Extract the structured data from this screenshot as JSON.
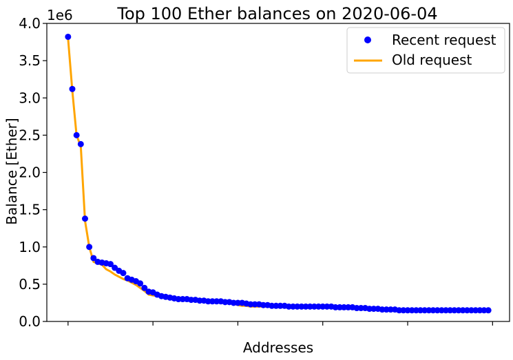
{
  "chart_data": {
    "type": "line",
    "title": "Top 100 Ether balances on 2020-06-04",
    "xlabel": "Addresses",
    "ylabel": "Balance [Ether]",
    "y_scale_label": "1e6",
    "ylim": [
      0,
      4.0
    ],
    "xlim": [
      -5,
      104
    ],
    "yticks": [
      0.0,
      0.5,
      1.0,
      1.5,
      2.0,
      2.5,
      3.0,
      3.5,
      4.0
    ],
    "ytick_labels": [
      "0.0",
      "0.5",
      "1.0",
      "1.5",
      "2.0",
      "2.5",
      "3.0",
      "3.5",
      "4.0"
    ],
    "xticks": [
      0,
      20,
      40,
      60,
      80,
      100
    ],
    "xtick_labels_shown": false,
    "grid": false,
    "legend_position": "top-right",
    "series": [
      {
        "name": "Recent request",
        "style": "scatter",
        "color": "#0000ff",
        "x": [
          0,
          1,
          2,
          3,
          4,
          5,
          6,
          7,
          8,
          9,
          10,
          11,
          12,
          13,
          14,
          15,
          16,
          17,
          18,
          19,
          20,
          21,
          22,
          23,
          24,
          25,
          26,
          27,
          28,
          29,
          30,
          31,
          32,
          33,
          34,
          35,
          36,
          37,
          38,
          39,
          40,
          41,
          42,
          43,
          44,
          45,
          46,
          47,
          48,
          49,
          50,
          51,
          52,
          53,
          54,
          55,
          56,
          57,
          58,
          59,
          60,
          61,
          62,
          63,
          64,
          65,
          66,
          67,
          68,
          69,
          70,
          71,
          72,
          73,
          74,
          75,
          76,
          77,
          78,
          79,
          80,
          81,
          82,
          83,
          84,
          85,
          86,
          87,
          88,
          89,
          90,
          91,
          92,
          93,
          94,
          95,
          96,
          97,
          98,
          99
        ],
        "values": [
          3.82,
          3.12,
          2.5,
          2.38,
          1.38,
          1.0,
          0.85,
          0.8,
          0.79,
          0.78,
          0.77,
          0.72,
          0.68,
          0.65,
          0.58,
          0.56,
          0.54,
          0.51,
          0.45,
          0.4,
          0.39,
          0.36,
          0.34,
          0.33,
          0.32,
          0.31,
          0.3,
          0.3,
          0.3,
          0.29,
          0.29,
          0.28,
          0.28,
          0.27,
          0.27,
          0.27,
          0.27,
          0.26,
          0.26,
          0.25,
          0.25,
          0.25,
          0.24,
          0.23,
          0.23,
          0.23,
          0.22,
          0.22,
          0.21,
          0.21,
          0.21,
          0.21,
          0.2,
          0.2,
          0.2,
          0.2,
          0.2,
          0.2,
          0.2,
          0.2,
          0.2,
          0.2,
          0.2,
          0.19,
          0.19,
          0.19,
          0.19,
          0.19,
          0.18,
          0.18,
          0.18,
          0.17,
          0.17,
          0.17,
          0.16,
          0.16,
          0.16,
          0.16,
          0.15,
          0.15,
          0.15,
          0.15,
          0.15,
          0.15,
          0.15,
          0.15,
          0.15,
          0.15,
          0.15,
          0.15,
          0.15,
          0.15,
          0.15,
          0.15,
          0.15,
          0.15,
          0.15,
          0.15,
          0.15,
          0.15
        ]
      },
      {
        "name": "Old request",
        "style": "line",
        "color": "#ffa500",
        "x": [
          0,
          1,
          2,
          3,
          4,
          5,
          6,
          7,
          8,
          9,
          10,
          11,
          12,
          13,
          14,
          15,
          16,
          17,
          18,
          19,
          20,
          21,
          22,
          23,
          24,
          25,
          26,
          27,
          28,
          29,
          30,
          31,
          32,
          33,
          34,
          35,
          36,
          37,
          38,
          39,
          40,
          41,
          42,
          43,
          44,
          45,
          46,
          47,
          48,
          49,
          50,
          51,
          52,
          53,
          54,
          55,
          56,
          57,
          58,
          59,
          60,
          61,
          62,
          63,
          64,
          65,
          66,
          67,
          68,
          69,
          70,
          71,
          72,
          73,
          74,
          75,
          76,
          77,
          78,
          79,
          80,
          81,
          82,
          83,
          84,
          85,
          86,
          87,
          88,
          89,
          90,
          91,
          92,
          93,
          94,
          95,
          96,
          97,
          98,
          99
        ],
        "values": [
          3.8,
          3.1,
          2.5,
          2.35,
          1.35,
          1.0,
          0.8,
          0.78,
          0.76,
          0.7,
          0.67,
          0.63,
          0.6,
          0.57,
          0.55,
          0.52,
          0.49,
          0.45,
          0.41,
          0.36,
          0.35,
          0.34,
          0.33,
          0.32,
          0.31,
          0.3,
          0.3,
          0.29,
          0.29,
          0.28,
          0.28,
          0.27,
          0.27,
          0.27,
          0.26,
          0.26,
          0.26,
          0.25,
          0.25,
          0.24,
          0.22,
          0.21,
          0.21,
          0.2,
          0.2,
          0.2,
          0.2,
          0.2,
          0.2,
          0.2,
          0.2,
          0.2,
          0.2,
          0.2,
          0.2,
          0.2,
          0.2,
          0.2,
          0.2,
          0.2,
          0.2,
          0.2,
          0.19,
          0.19,
          0.19,
          0.18,
          0.18,
          0.18,
          0.17,
          0.17,
          0.17,
          0.17,
          0.17,
          0.16,
          0.16,
          0.16,
          0.16,
          0.16,
          0.15,
          0.15,
          0.15,
          0.15,
          0.15,
          0.15,
          0.15,
          0.15,
          0.15,
          0.15,
          0.15,
          0.15,
          0.15,
          0.15,
          0.15,
          0.15,
          0.15,
          0.15,
          0.15,
          0.15,
          0.15,
          0.15
        ]
      }
    ]
  }
}
